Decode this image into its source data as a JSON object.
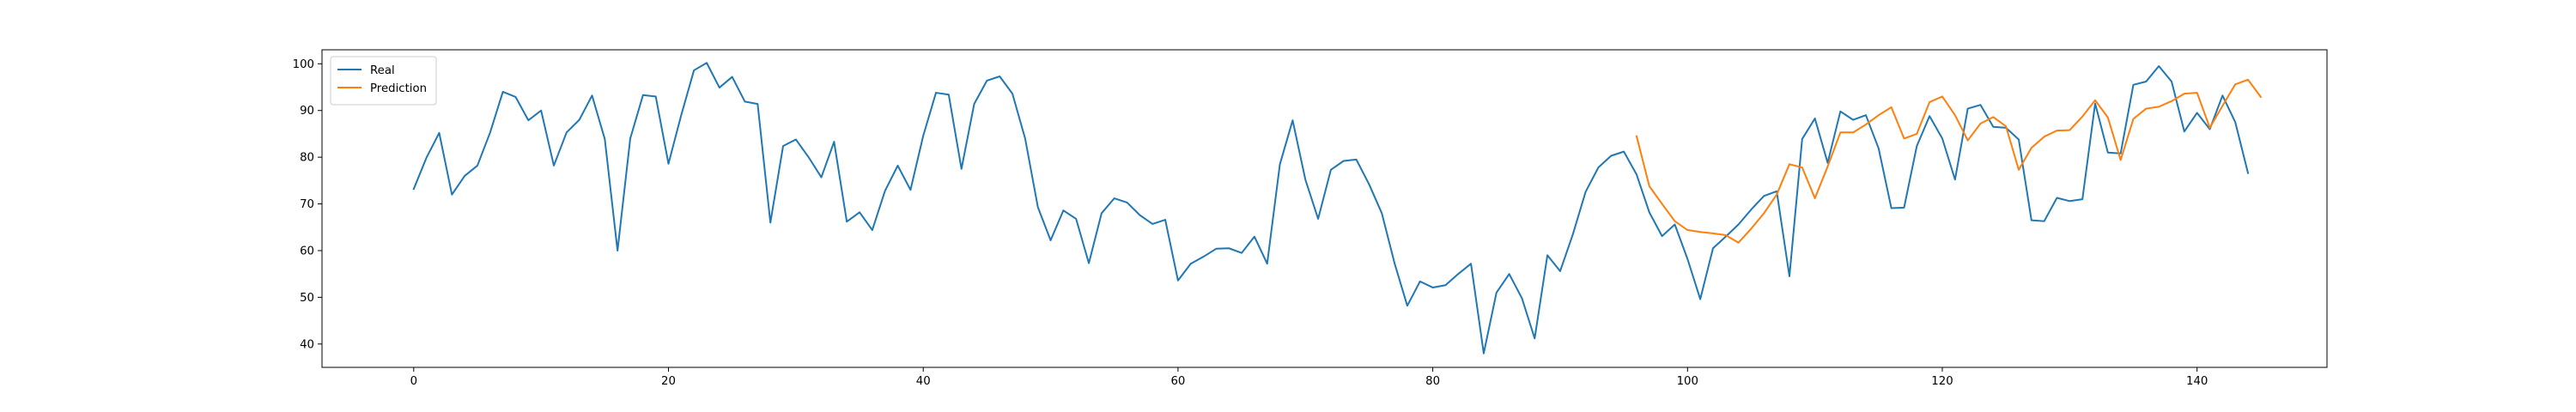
{
  "chart_data": {
    "type": "line",
    "title": "",
    "xlabel": "",
    "ylabel": "",
    "xlim": [
      -7.2,
      150.2
    ],
    "ylim": [
      35,
      103
    ],
    "xticks": [
      0,
      20,
      40,
      60,
      80,
      100,
      120,
      140
    ],
    "yticks": [
      40,
      50,
      60,
      70,
      80,
      90,
      100
    ],
    "legend": {
      "placement": "top-left"
    },
    "grid": false,
    "series": [
      {
        "name": "Real",
        "color": "#1f77b4",
        "x_start": 0,
        "values": [
          73.2,
          79.9,
          85.2,
          72.0,
          76.0,
          78.2,
          85.3,
          94.0,
          92.9,
          87.9,
          90.0,
          78.2,
          85.3,
          88.0,
          93.2,
          83.9,
          60.0,
          84.0,
          93.3,
          93.0,
          78.6,
          89.0,
          98.6,
          100.2,
          94.9,
          97.2,
          91.9,
          91.4,
          66.0,
          82.4,
          83.8,
          80.0,
          75.7,
          83.3,
          66.2,
          68.2,
          64.4,
          72.8,
          78.2,
          73.0,
          84.6,
          93.8,
          93.4,
          77.5,
          91.4,
          96.4,
          97.3,
          93.6,
          84.0,
          69.3,
          62.2,
          68.6,
          66.8,
          57.3,
          68.0,
          71.2,
          70.3,
          67.6,
          65.7,
          66.6,
          53.6,
          57.2,
          58.7,
          60.4,
          60.5,
          59.5,
          63.0,
          57.2,
          78.5,
          87.9,
          75.2,
          66.8,
          77.3,
          79.2,
          79.5,
          74.2,
          68.0,
          57.3,
          48.2,
          53.4,
          52.1,
          52.6,
          55.0,
          57.2,
          38.0,
          51.0,
          55.0,
          49.8,
          41.2,
          59.0,
          55.6,
          63.5,
          72.6,
          77.8,
          80.3,
          81.2,
          76.3,
          68.2,
          63.1,
          65.6,
          58.2,
          49.6,
          60.5,
          63.0,
          65.6,
          68.8,
          71.7,
          72.7,
          54.5,
          83.9,
          88.3,
          78.8,
          89.8,
          88.0,
          89.0,
          81.9,
          69.1,
          69.2,
          82.4,
          88.8,
          84.0,
          75.2,
          90.4,
          91.2,
          86.5,
          86.3,
          83.8,
          66.5,
          66.3,
          71.3,
          70.6,
          71.0,
          91.5,
          81.0,
          80.8,
          95.5,
          96.2,
          99.5,
          96.2,
          85.5,
          89.5,
          86.0,
          93.2,
          87.5,
          76.6
        ]
      },
      {
        "name": "Prediction",
        "color": "#ff7f0e",
        "x_start": 96,
        "values": [
          84.5,
          73.8,
          70.0,
          66.3,
          64.4,
          64.0,
          63.7,
          63.3,
          61.7,
          64.7,
          68.0,
          72.0,
          78.5,
          77.8,
          71.2,
          78.0,
          85.3,
          85.3,
          87.0,
          89.0,
          90.7,
          84.0,
          85.0,
          91.8,
          93.0,
          89.0,
          83.6,
          87.2,
          88.6,
          86.6,
          77.3,
          82.0,
          84.4,
          85.7,
          85.8,
          88.7,
          92.2,
          88.5,
          79.4,
          88.2,
          90.4,
          90.8,
          92.0,
          93.6,
          93.8,
          86.3,
          91.0,
          95.6,
          96.6,
          92.9
        ]
      }
    ]
  }
}
